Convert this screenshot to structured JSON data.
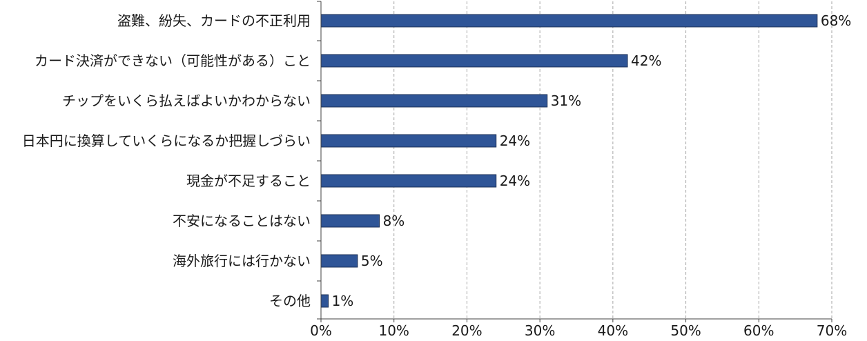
{
  "chart_data": {
    "type": "bar",
    "orientation": "horizontal",
    "categories": [
      "盗難、紛失、カードの不正利用",
      "カード決済ができない（可能性がある）こと",
      "チップをいくら払えばよいかわからない",
      "日本円に換算していくらになるか把握しづらい",
      "現金が不足すること",
      "不安になることはない",
      "海外旅行には行かない",
      "その他"
    ],
    "values": [
      68,
      42,
      31,
      24,
      24,
      8,
      5,
      1
    ],
    "value_labels": [
      "68%",
      "42%",
      "31%",
      "24%",
      "24%",
      "8%",
      "5%",
      "1%"
    ],
    "title": "",
    "xlabel": "",
    "ylabel": "",
    "xlim": [
      0,
      70
    ],
    "x_ticks": [
      0,
      10,
      20,
      30,
      40,
      50,
      60,
      70
    ],
    "x_tick_labels": [
      "0%",
      "10%",
      "20%",
      "30%",
      "40%",
      "50%",
      "60%",
      "70%"
    ],
    "grid": "vertical dashed",
    "legend": "none",
    "colors": {
      "bar_fill": "#2f5597",
      "bar_stroke": "#1b2f55",
      "grid": "#a6a6a6",
      "axis": "#404040",
      "text": "#1a1a1a"
    }
  }
}
